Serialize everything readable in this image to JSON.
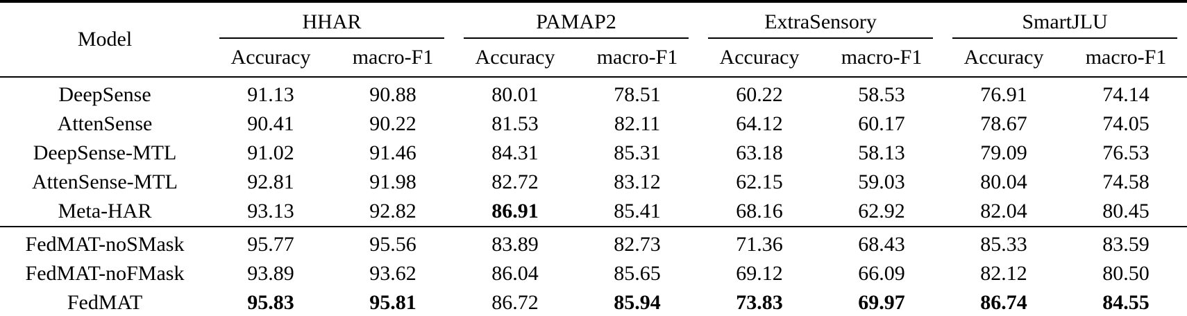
{
  "table": {
    "header": {
      "model_label": "Model",
      "groups": [
        {
          "label": "HHAR",
          "metrics": [
            "Accuracy",
            "macro-F1"
          ]
        },
        {
          "label": "PAMAP2",
          "metrics": [
            "Accuracy",
            "macro-F1"
          ]
        },
        {
          "label": "ExtraSensory",
          "metrics": [
            "Accuracy",
            "macro-F1"
          ]
        },
        {
          "label": "SmartJLU",
          "metrics": [
            "Accuracy",
            "macro-F1"
          ]
        }
      ]
    },
    "sections": [
      {
        "name": "baselines",
        "rows": [
          {
            "model": "DeepSense",
            "values": [
              "91.13",
              "90.88",
              "80.01",
              "78.51",
              "60.22",
              "58.53",
              "76.91",
              "74.14"
            ],
            "bold": []
          },
          {
            "model": "AttenSense",
            "values": [
              "90.41",
              "90.22",
              "81.53",
              "82.11",
              "64.12",
              "60.17",
              "78.67",
              "74.05"
            ],
            "bold": []
          },
          {
            "model": "DeepSense-MTL",
            "values": [
              "91.02",
              "91.46",
              "84.31",
              "85.31",
              "63.18",
              "58.13",
              "79.09",
              "76.53"
            ],
            "bold": []
          },
          {
            "model": "AttenSense-MTL",
            "values": [
              "92.81",
              "91.98",
              "82.72",
              "83.12",
              "62.15",
              "59.03",
              "80.04",
              "74.58"
            ],
            "bold": []
          },
          {
            "model": "Meta-HAR",
            "values": [
              "93.13",
              "92.82",
              "86.91",
              "85.41",
              "68.16",
              "62.92",
              "82.04",
              "80.45"
            ],
            "bold": [
              2
            ]
          }
        ]
      },
      {
        "name": "fedmat-variants",
        "rows": [
          {
            "model": "FedMAT-noSMask",
            "values": [
              "95.77",
              "95.56",
              "83.89",
              "82.73",
              "71.36",
              "68.43",
              "85.33",
              "83.59"
            ],
            "bold": []
          },
          {
            "model": "FedMAT-noFMask",
            "values": [
              "93.89",
              "93.62",
              "86.04",
              "85.65",
              "69.12",
              "66.09",
              "82.12",
              "80.50"
            ],
            "bold": []
          },
          {
            "model": "FedMAT",
            "values": [
              "95.83",
              "95.81",
              "86.72",
              "85.94",
              "73.83",
              "69.97",
              "86.74",
              "84.55"
            ],
            "bold": [
              0,
              1,
              3,
              4,
              5,
              6,
              7
            ]
          }
        ]
      }
    ]
  },
  "colors": {
    "text": "#000000",
    "background": "#ffffff",
    "rule": "#000000"
  }
}
